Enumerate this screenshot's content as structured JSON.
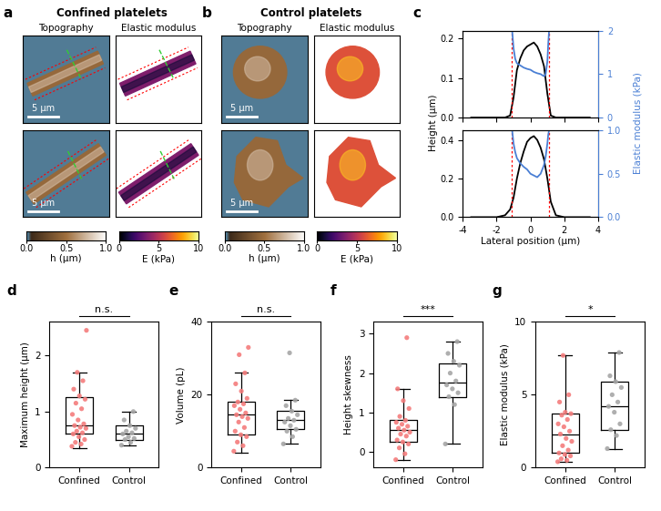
{
  "chart_data": [
    {
      "type": "image",
      "panel": "a",
      "title": "Confined platelets",
      "columns": [
        "Topography",
        "Elastic modulus"
      ],
      "scale_bar": "5 µm",
      "colorbars": [
        {
          "label": "h (µm)",
          "lim": [
            0,
            1
          ],
          "ticks": [
            {
              "value": 0,
              "label": "0.0"
            },
            0.5,
            {
              "value": 1,
              "label": "1.0"
            }
          ]
        },
        {
          "label": "E (kPa)",
          "lim": [
            0,
            10
          ],
          "ticks": [
            0,
            5,
            10
          ]
        }
      ]
    },
    {
      "type": "image",
      "panel": "b",
      "title": "Control platelets",
      "columns": [
        "Topography",
        "Elastic modulus"
      ],
      "scale_bar": "5 µm",
      "colorbars": [
        {
          "label": "h (µm)",
          "lim": [
            0,
            1
          ],
          "ticks": [
            {
              "value": 0,
              "label": "0.0"
            },
            0.5,
            {
              "value": 1,
              "label": "1.0"
            }
          ]
        },
        {
          "label": "E (kPa)",
          "lim": [
            0,
            10
          ],
          "ticks": [
            0,
            5,
            10
          ]
        }
      ]
    },
    {
      "type": "line",
      "panel": "c",
      "xlabel": "Lateral position (µm)",
      "ylabel": "Height (µm)",
      "y2label": "Elastic modulus (kPa)",
      "xlim": [
        -4,
        4
      ],
      "xticks": [
        -4,
        -2,
        0,
        2,
        4
      ],
      "subplots": [
        {
          "ylim": [
            0,
            0.22
          ],
          "yticks": [
            {
              "value": 0,
              "label": "0.0"
            },
            0.1,
            0.2
          ],
          "y2lim": [
            0,
            2
          ],
          "y2ticks": [
            0,
            1,
            2
          ],
          "boundaries": [
            -1.1,
            1.1
          ],
          "series": [
            {
              "color": "#000000",
              "x": [
                -3.5,
                -3,
                -2.5,
                -2,
                -1.5,
                -1.2,
                -1.0,
                -0.8,
                -0.6,
                -0.4,
                -0.2,
                0,
                0.2,
                0.4,
                0.6,
                0.8,
                1.0,
                1.2,
                1.5,
                2,
                2.5,
                3,
                3.5
              ],
              "values": [
                0,
                0,
                0,
                0,
                0,
                0.005,
                0.05,
                0.12,
                0.15,
                0.17,
                0.18,
                0.185,
                0.19,
                0.18,
                0.16,
                0.13,
                0.06,
                0.005,
                0,
                0,
                0,
                0,
                0
              ]
            },
            {
              "color": "#4a7fd4",
              "axis": "y2",
              "x": [
                -1.08,
                -1.0,
                -0.9,
                -0.8,
                -0.6,
                -0.4,
                -0.2,
                0,
                0.2,
                0.4,
                0.6,
                0.8,
                0.9,
                1.0,
                1.05,
                1.1
              ],
              "values": [
                2.0,
                1.6,
                1.35,
                1.25,
                1.2,
                1.15,
                1.12,
                1.1,
                1.05,
                1.02,
                1.0,
                0.95,
                1.0,
                1.3,
                1.7,
                2.0
              ]
            }
          ]
        },
        {
          "ylim": [
            0,
            0.45
          ],
          "yticks": [
            {
              "value": 0,
              "label": "0.0"
            },
            0.2,
            0.4
          ],
          "y2lim": [
            0,
            1
          ],
          "y2ticks": [
            {
              "value": 0,
              "label": "0.0"
            },
            0.5,
            {
              "value": 1,
              "label": "1.0"
            }
          ],
          "boundaries": [
            -1.1,
            1.1
          ],
          "series": [
            {
              "color": "#000000",
              "x": [
                -3.5,
                -3,
                -2.5,
                -2,
                -1.5,
                -1.2,
                -1.0,
                -0.8,
                -0.6,
                -0.4,
                -0.2,
                0,
                0.2,
                0.4,
                0.6,
                0.8,
                1.0,
                1.2,
                1.5,
                2,
                2.5,
                3,
                3.5
              ],
              "values": [
                0,
                0,
                0,
                0,
                0.01,
                0.04,
                0.1,
                0.2,
                0.28,
                0.34,
                0.39,
                0.41,
                0.42,
                0.4,
                0.36,
                0.3,
                0.2,
                0.08,
                0.01,
                0,
                0,
                0,
                0
              ]
            },
            {
              "color": "#4a7fd4",
              "axis": "y2",
              "x": [
                -1.08,
                -1.0,
                -0.9,
                -0.8,
                -0.6,
                -0.4,
                -0.2,
                0,
                0.2,
                0.4,
                0.6,
                0.8,
                0.9,
                1.0,
                1.05,
                1.1
              ],
              "values": [
                1.0,
                0.85,
                0.75,
                0.68,
                0.62,
                0.58,
                0.55,
                0.5,
                0.48,
                0.46,
                0.5,
                0.6,
                0.7,
                0.85,
                0.95,
                1.0
              ]
            }
          ]
        }
      ]
    },
    {
      "type": "box",
      "panel": "d",
      "ylabel": "Maximum height (µm)",
      "categories": [
        "Confined",
        "Control"
      ],
      "ylim": [
        0,
        2.6
      ],
      "yticks": [
        0,
        1,
        2
      ],
      "significance": "n.s.",
      "colors": [
        "#f47c7c",
        "#a6a6a6"
      ],
      "boxes": [
        {
          "whislo": 0.35,
          "q1": 0.6,
          "med": 0.75,
          "q3": 1.25,
          "whishi": 1.7,
          "points": [
            0.38,
            0.42,
            0.45,
            0.5,
            0.55,
            0.6,
            0.62,
            0.65,
            0.7,
            0.72,
            0.75,
            0.78,
            0.85,
            0.95,
            1.05,
            1.15,
            1.22,
            1.28,
            1.4,
            1.55,
            1.7,
            2.45
          ]
        },
        {
          "whislo": 0.4,
          "q1": 0.5,
          "med": 0.6,
          "q3": 0.75,
          "whishi": 1.0,
          "points": [
            0.4,
            0.45,
            0.5,
            0.52,
            0.55,
            0.6,
            0.62,
            0.65,
            0.7,
            0.75,
            0.85,
            1.0
          ]
        }
      ]
    },
    {
      "type": "box",
      "panel": "e",
      "ylabel": "Volume (pL)",
      "categories": [
        "Confined",
        "Control"
      ],
      "ylim": [
        0,
        40
      ],
      "yticks": [
        0,
        20,
        40
      ],
      "significance": "n.s.",
      "colors": [
        "#f47c7c",
        "#a6a6a6"
      ],
      "boxes": [
        {
          "whislo": 4,
          "q1": 9,
          "med": 14.5,
          "q3": 18,
          "whishi": 26,
          "points": [
            4.5,
            6,
            7,
            8.5,
            9,
            10,
            11,
            12.5,
            13.5,
            14,
            14.5,
            15,
            16,
            17,
            17.5,
            18,
            19,
            21,
            23,
            26,
            31,
            33
          ]
        },
        {
          "whislo": 6.5,
          "q1": 10.5,
          "med": 13,
          "q3": 15.5,
          "whishi": 18.5,
          "points": [
            6.5,
            8.5,
            10,
            10.5,
            11.5,
            12.5,
            13,
            13.5,
            14.5,
            15.5,
            17,
            18.5,
            31.5
          ]
        }
      ]
    },
    {
      "type": "box",
      "panel": "f",
      "ylabel": "Height skewness",
      "categories": [
        "Confined",
        "Control"
      ],
      "ylim": [
        -0.4,
        3.3
      ],
      "yticks": [
        0,
        1,
        2,
        3
      ],
      "significance": "***",
      "colors": [
        "#f47c7c",
        "#a6a6a6"
      ],
      "boxes": [
        {
          "whislo": -0.2,
          "q1": 0.25,
          "med": 0.55,
          "q3": 0.8,
          "whishi": 1.6,
          "points": [
            -0.2,
            -0.05,
            0.1,
            0.2,
            0.25,
            0.3,
            0.4,
            0.45,
            0.5,
            0.55,
            0.6,
            0.65,
            0.7,
            0.75,
            0.8,
            0.9,
            1.1,
            1.3,
            1.6,
            2.9
          ]
        },
        {
          "whislo": 0.2,
          "q1": 1.4,
          "med": 1.75,
          "q3": 2.25,
          "whishi": 2.8,
          "points": [
            0.2,
            1.2,
            1.4,
            1.5,
            1.6,
            1.7,
            1.8,
            2.0,
            2.2,
            2.3,
            2.5,
            2.8
          ]
        }
      ]
    },
    {
      "type": "box",
      "panel": "g",
      "ylabel": "Elastic modulus (kPa)",
      "categories": [
        "Confined",
        "Control"
      ],
      "ylim": [
        0,
        10
      ],
      "yticks": [
        0,
        5,
        10
      ],
      "significance": "*",
      "colors": [
        "#f47c7c",
        "#a6a6a6"
      ],
      "boxes": [
        {
          "whislo": 0.4,
          "q1": 1.0,
          "med": 2.3,
          "q3": 3.7,
          "whishi": 7.7,
          "points": [
            0.4,
            0.5,
            0.6,
            0.8,
            0.9,
            1.0,
            1.2,
            1.5,
            1.8,
            2.0,
            2.3,
            2.5,
            2.8,
            3.0,
            3.3,
            3.6,
            3.7,
            3.8,
            4.5,
            5.0,
            7.7
          ]
        },
        {
          "whislo": 1.3,
          "q1": 2.6,
          "med": 4.2,
          "q3": 5.9,
          "whishi": 7.9,
          "points": [
            1.3,
            2.2,
            2.6,
            3.0,
            3.8,
            4.2,
            4.5,
            5.0,
            5.5,
            5.9,
            6.3,
            7.9
          ]
        }
      ]
    }
  ]
}
